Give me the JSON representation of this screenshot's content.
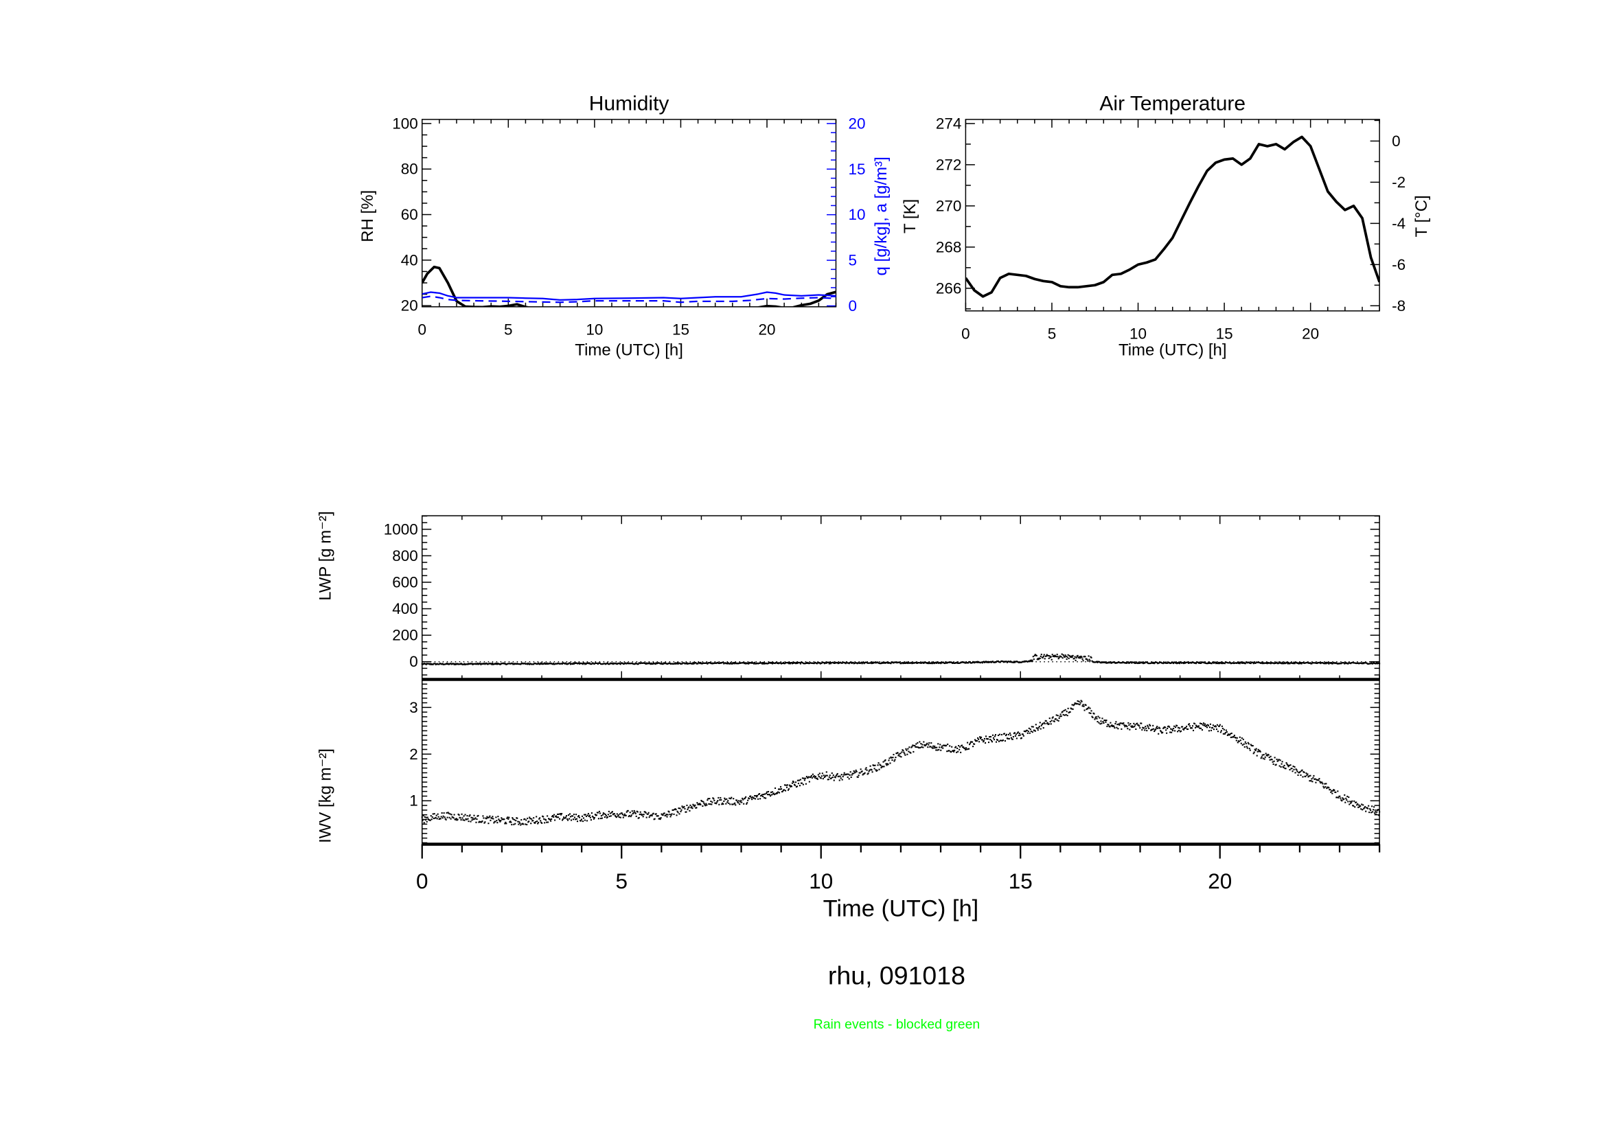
{
  "figure": {
    "title": "rhu, 091018",
    "note": "Rain events - blocked green",
    "note_color": "#00ff00"
  },
  "chart_data": [
    {
      "id": "humidity",
      "type": "line",
      "title": "Humidity",
      "xlabel": "Time (UTC) [h]",
      "ylabel": "RH [%]",
      "y2label": "q [g/kg], a [g/m³]",
      "xlim": [
        0,
        24
      ],
      "ylim": [
        19.5,
        101.8
      ],
      "y2lim": [
        -0.1,
        20.45
      ],
      "xticks": [
        0,
        5,
        10,
        15,
        20
      ],
      "yticks": [
        20,
        40,
        60,
        80,
        100
      ],
      "y2ticks": [
        0,
        5,
        10,
        15,
        20
      ],
      "y2_color": "#0000ff",
      "series": [
        {
          "name": "RH",
          "axis": "left",
          "color": "#000000",
          "style": "solid",
          "x": [
            0,
            0.3,
            0.7,
            1,
            1.5,
            2,
            2.5,
            3,
            3.5,
            4,
            4.5,
            5,
            5.5,
            6,
            6.5,
            7,
            7.5,
            19,
            19.5,
            20,
            20.5,
            21,
            21.5,
            22,
            22.5,
            23,
            23.5,
            24
          ],
          "y": [
            30,
            34,
            37,
            36.5,
            30,
            22,
            19.6,
            19.4,
            19.3,
            19.7,
            19.5,
            19.9,
            20.6,
            19.4,
            18.7,
            19,
            17,
            17,
            19.2,
            19.8,
            19.6,
            19,
            19.2,
            20.2,
            20.8,
            22.2,
            25,
            26
          ]
        },
        {
          "name": "q",
          "axis": "right",
          "color": "#0000ff",
          "style": "solid",
          "x": [
            0,
            0.5,
            1,
            1.5,
            2,
            3,
            5,
            6,
            7,
            8,
            9,
            10,
            12,
            14,
            15,
            16,
            17,
            18.5,
            19.5,
            20,
            20.5,
            21,
            22,
            23,
            24
          ],
          "y": [
            1.3,
            1.5,
            1.4,
            1.1,
            0.9,
            0.9,
            0.9,
            0.85,
            0.8,
            0.65,
            0.7,
            0.8,
            0.85,
            0.9,
            0.8,
            0.9,
            1.0,
            1.0,
            1.3,
            1.5,
            1.4,
            1.2,
            1.1,
            1.2,
            1.1
          ]
        },
        {
          "name": "a",
          "axis": "right",
          "color": "#0000ff",
          "style": "dashed",
          "x": [
            0,
            0.5,
            1,
            1.5,
            2,
            5,
            8,
            9,
            10,
            14,
            15,
            16,
            18,
            19,
            20,
            21,
            22,
            23,
            24
          ],
          "y": [
            0.9,
            1.05,
            0.9,
            0.7,
            0.6,
            0.5,
            0.4,
            0.45,
            0.55,
            0.55,
            0.4,
            0.5,
            0.5,
            0.6,
            0.8,
            0.75,
            0.85,
            0.9,
            0.8
          ]
        }
      ]
    },
    {
      "id": "temperature",
      "type": "line",
      "title": "Air Temperature",
      "xlabel": "Time (UTC) [h]",
      "ylabel": "T [K]",
      "y2label": "T [°C]",
      "xlim": [
        0,
        24
      ],
      "ylim": [
        264.9,
        274.2
      ],
      "y2lim": [
        -8.25,
        1.05
      ],
      "xticks": [
        0,
        5,
        10,
        15,
        20
      ],
      "yticks": [
        266,
        268,
        270,
        272,
        274
      ],
      "y2ticks": [
        0,
        -2,
        -4,
        -6,
        -8
      ],
      "series": [
        {
          "name": "T",
          "color": "#000000",
          "x": [
            0,
            0.5,
            1,
            1.5,
            2,
            2.5,
            3,
            3.5,
            4,
            4.5,
            5,
            5.5,
            6,
            6.5,
            7,
            7.5,
            8,
            8.5,
            9,
            9.5,
            10,
            10.5,
            11,
            11.5,
            12,
            12.5,
            13,
            13.5,
            14,
            14.5,
            15,
            15.5,
            16,
            16.5,
            17,
            17.5,
            18,
            18.5,
            19,
            19.5,
            20,
            20.5,
            21,
            21.5,
            22,
            22.5,
            23,
            23.5,
            24
          ],
          "y": [
            266.5,
            265.9,
            265.6,
            265.8,
            266.5,
            266.7,
            266.65,
            266.6,
            266.45,
            266.35,
            266.3,
            266.1,
            266.05,
            266.05,
            266.1,
            266.15,
            266.3,
            266.65,
            266.7,
            266.9,
            267.15,
            267.25,
            267.4,
            267.9,
            268.45,
            269.3,
            270.15,
            270.95,
            271.7,
            272.1,
            272.25,
            272.3,
            272.0,
            272.3,
            273.0,
            272.9,
            273.0,
            272.75,
            273.1,
            273.35,
            272.9,
            271.8,
            270.7,
            270.2,
            269.8,
            270.0,
            269.4,
            267.5,
            266.3
          ]
        }
      ]
    },
    {
      "id": "lwp",
      "type": "scatter",
      "title": "",
      "xlabel": "",
      "ylabel": "LWP [g m⁻²]",
      "xlim": [
        0,
        24
      ],
      "ylim": [
        -134,
        1102
      ],
      "yticks": [
        0,
        200,
        400,
        600,
        800,
        1000
      ],
      "reference_line": 0,
      "series": [
        {
          "name": "LWP",
          "color": "#000000",
          "x": [
            0,
            1,
            2,
            3,
            4,
            5,
            6,
            7,
            8,
            9,
            10,
            11,
            12,
            13,
            14,
            14.5,
            15,
            15.5,
            16,
            16.5,
            17,
            18,
            19,
            20,
            21,
            22,
            23,
            24
          ],
          "y": [
            -18,
            -17,
            -16,
            -15,
            -14,
            -14,
            -13,
            -11,
            -11,
            -10,
            -10,
            -9,
            -8,
            -8,
            -4,
            0,
            -2,
            15,
            20,
            10,
            -6,
            -8,
            -8,
            -8,
            -9,
            -10,
            -11,
            -12
          ]
        }
      ]
    },
    {
      "id": "iwv",
      "type": "scatter",
      "title": "",
      "xlabel": "Time (UTC) [h]",
      "ylabel": "IWV [kg m⁻²]",
      "xlim": [
        0,
        24
      ],
      "ylim": [
        0.07,
        3.6
      ],
      "xticks": [
        0,
        5,
        10,
        15,
        20
      ],
      "yticks": [
        1,
        2,
        3
      ],
      "series": [
        {
          "name": "IWV",
          "color": "#000000",
          "x": [
            0,
            0.5,
            1,
            1.5,
            2,
            2.5,
            3,
            3.5,
            4,
            4.5,
            5,
            5.5,
            6,
            6.5,
            7,
            7.5,
            8,
            8.5,
            9,
            9.5,
            10,
            10.5,
            11,
            11.5,
            12,
            12.5,
            13,
            13.5,
            14,
            14.5,
            15,
            15.5,
            16,
            16.5,
            17,
            17.5,
            18,
            18.5,
            19,
            19.5,
            20,
            20.5,
            21,
            21.5,
            22,
            22.5,
            23,
            23.5,
            24
          ],
          "y": [
            0.6,
            0.68,
            0.65,
            0.6,
            0.58,
            0.55,
            0.6,
            0.65,
            0.63,
            0.7,
            0.72,
            0.7,
            0.66,
            0.8,
            0.95,
            1.0,
            0.98,
            1.1,
            1.25,
            1.4,
            1.55,
            1.5,
            1.6,
            1.75,
            2.0,
            2.2,
            2.15,
            2.1,
            2.3,
            2.35,
            2.4,
            2.6,
            2.8,
            3.1,
            2.7,
            2.6,
            2.6,
            2.5,
            2.55,
            2.6,
            2.55,
            2.3,
            2.0,
            1.8,
            1.6,
            1.4,
            1.1,
            0.9,
            0.75
          ]
        }
      ]
    }
  ]
}
